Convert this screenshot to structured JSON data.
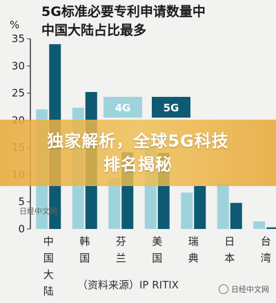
{
  "chart_data": {
    "type": "bar",
    "title_lines": [
      "5G标准必要专利申请数量中",
      "中国大陆占比最多"
    ],
    "ylabel": "%",
    "ylim": [
      0,
      35
    ],
    "yticks": [
      0,
      5,
      10,
      15,
      20,
      25,
      30,
      35
    ],
    "categories": [
      "中国大陆",
      "韩国",
      "芬兰",
      "美国",
      "瑞典",
      "日本",
      "台湾"
    ],
    "category_label_lines": [
      [
        "中",
        "国",
        "大",
        "陆"
      ],
      [
        "韩",
        "国"
      ],
      [
        "芬",
        "兰"
      ],
      [
        "美",
        "国"
      ],
      [
        "瑞",
        "典"
      ],
      [
        "日",
        "本"
      ],
      [
        "台",
        "湾"
      ]
    ],
    "series": [
      {
        "name": "4G",
        "color": "#9fd3dc",
        "values": [
          22.0,
          22.3,
          9.4,
          15.7,
          6.7,
          8.4,
          1.4
        ]
      },
      {
        "name": "5G",
        "color": "#0e5a73",
        "values": [
          34.0,
          25.2,
          14.1,
          14.0,
          7.9,
          4.8,
          0.3
        ]
      }
    ],
    "source": "（资料来源）IP RITIX",
    "grid": false,
    "legend": "top-center"
  },
  "watermark_left": "日经中文网",
  "watermark_right": "日经中文网",
  "banner": {
    "line1": "独家解析，全球5G科技",
    "line2": "排名揭秘"
  }
}
